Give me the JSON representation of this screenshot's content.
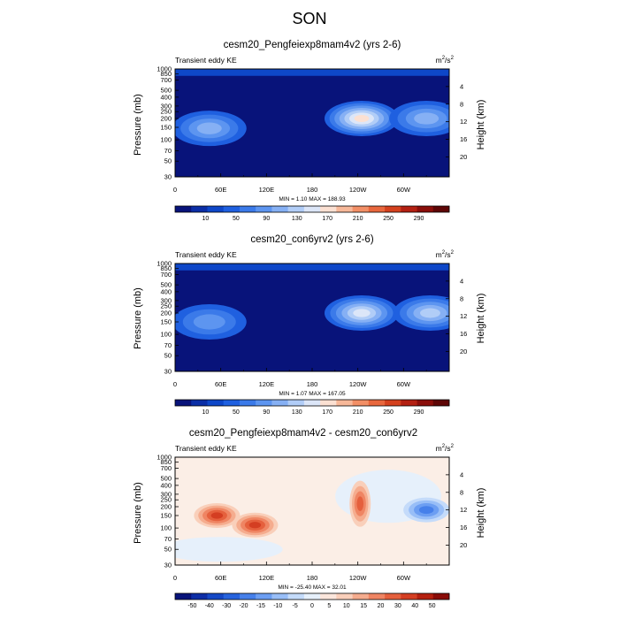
{
  "figure": {
    "title": "SON"
  },
  "colorbar_abs": {
    "ticks": [
      "10",
      "50",
      "90",
      "130",
      "170",
      "210",
      "250",
      "290"
    ],
    "colors": [
      "#08137a",
      "#0b2ea6",
      "#0e47c8",
      "#1f60e0",
      "#3b7ae9",
      "#5d95f0",
      "#86b0f4",
      "#b1cdf7",
      "#dce6f8",
      "#fbe0d2",
      "#f7b899",
      "#f28f66",
      "#e8673d",
      "#d4411e",
      "#b32012",
      "#8a0e0a",
      "#5e0606"
    ]
  },
  "colorbar_diff": {
    "ticks": [
      "-50",
      "-40",
      "-30",
      "-20",
      "-15",
      "-10",
      "-5",
      "0",
      "5",
      "10",
      "15",
      "20",
      "30",
      "40",
      "50"
    ],
    "colors": [
      "#08137a",
      "#0e2ea6",
      "#1548c6",
      "#2763dd",
      "#4680ea",
      "#6c9ef2",
      "#98bef7",
      "#c4dbfa",
      "#e6f0fb",
      "#fbe6dc",
      "#f9cfba",
      "#f5ac8e",
      "#ef8563",
      "#e5603d",
      "#d43e22",
      "#b5200f",
      "#8a0c08"
    ]
  },
  "chart_data": [
    {
      "type": "heatmap",
      "title": "cesm20_Pengfeiexp8mam4v2 (yrs 2-6)",
      "subtitle_left": "Transient eddy KE",
      "units": "m²/s²",
      "units_base": "m",
      "units_sup1": "2",
      "units_mid": "/s",
      "units_sup2": "2",
      "xlabel": "",
      "ylabel": "Pressure (mb)",
      "ylabel_right": "Height (km)",
      "x_ticks": [
        "0",
        "60E",
        "120E",
        "180",
        "120W",
        "60W"
      ],
      "x_tick_lon": [
        0,
        60,
        120,
        180,
        240,
        300
      ],
      "xlim": [
        0,
        360
      ],
      "y_ticks": [
        "30",
        "50",
        "70",
        "100",
        "150",
        "200",
        "250",
        "300",
        "400",
        "500",
        "700",
        "850",
        "1000"
      ],
      "y_tick_p": [
        30,
        50,
        70,
        100,
        150,
        200,
        250,
        300,
        400,
        500,
        700,
        850,
        1000
      ],
      "ylim": [
        1000,
        30
      ],
      "right_ticks": [
        "20",
        "16",
        "12",
        "8",
        "4"
      ],
      "right_tick_km": [
        20,
        16,
        12,
        8,
        4
      ],
      "stats_text": "MIN =   1.10  MAX = 188.93",
      "min": 1.1,
      "max": 188.93,
      "features": [
        {
          "lon": 45,
          "p": 145,
          "value": 115
        },
        {
          "lon": 245,
          "p": 200,
          "value": 188.93
        },
        {
          "lon": 330,
          "p": 200,
          "value": 125
        }
      ]
    },
    {
      "type": "heatmap",
      "title": "cesm20_con6yrv2 (yrs 2-6)",
      "subtitle_left": "Transient eddy KE",
      "units": "m²/s²",
      "units_base": "m",
      "units_sup1": "2",
      "units_mid": "/s",
      "units_sup2": "2",
      "xlabel": "",
      "ylabel": "Pressure (mb)",
      "ylabel_right": "Height (km)",
      "x_ticks": [
        "0",
        "60E",
        "120E",
        "180",
        "120W",
        "60W"
      ],
      "x_tick_lon": [
        0,
        60,
        120,
        180,
        240,
        300
      ],
      "xlim": [
        0,
        360
      ],
      "y_ticks": [
        "30",
        "50",
        "70",
        "100",
        "150",
        "200",
        "250",
        "300",
        "400",
        "500",
        "700",
        "850",
        "1000"
      ],
      "y_tick_p": [
        30,
        50,
        70,
        100,
        150,
        200,
        250,
        300,
        400,
        500,
        700,
        850,
        1000
      ],
      "ylim": [
        1000,
        30
      ],
      "right_ticks": [
        "20",
        "16",
        "12",
        "8",
        "4"
      ],
      "right_tick_km": [
        20,
        16,
        12,
        8,
        4
      ],
      "stats_text": "MIN =   1.07  MAX = 167.05",
      "min": 1.07,
      "max": 167.05,
      "features": [
        {
          "lon": 45,
          "p": 150,
          "value": 95
        },
        {
          "lon": 245,
          "p": 200,
          "value": 167.05
        },
        {
          "lon": 335,
          "p": 200,
          "value": 140
        }
      ]
    },
    {
      "type": "heatmap",
      "title": "cesm20_Pengfeiexp8mam4v2 - cesm20_con6yrv2",
      "subtitle_left": "Transient eddy KE",
      "units": "m²/s²",
      "units_base": "m",
      "units_sup1": "2",
      "units_mid": "/s",
      "units_sup2": "2",
      "xlabel": "",
      "ylabel": "Pressure (mb)",
      "ylabel_right": "Height (km)",
      "x_ticks": [
        "0",
        "60E",
        "120E",
        "180",
        "120W",
        "60W"
      ],
      "x_tick_lon": [
        0,
        60,
        120,
        180,
        240,
        300
      ],
      "xlim": [
        0,
        360
      ],
      "y_ticks": [
        "30",
        "50",
        "70",
        "100",
        "150",
        "200",
        "250",
        "300",
        "400",
        "500",
        "700",
        "850",
        "1000"
      ],
      "y_tick_p": [
        30,
        50,
        70,
        100,
        150,
        200,
        250,
        300,
        400,
        500,
        700,
        850,
        1000
      ],
      "ylim": [
        1000,
        30
      ],
      "right_ticks": [
        "20",
        "16",
        "12",
        "8",
        "4"
      ],
      "right_tick_km": [
        20,
        16,
        12,
        8,
        4
      ],
      "stats_text": "MIN = -25.40  MAX =  32.01",
      "min": -25.4,
      "max": 32.01,
      "features": [
        {
          "lon": 55,
          "p": 150,
          "value": 30
        },
        {
          "lon": 105,
          "p": 110,
          "value": 32.01
        },
        {
          "lon": 243,
          "p": 220,
          "value": 25
        },
        {
          "lon": 330,
          "p": 180,
          "value": -25.4
        }
      ]
    }
  ]
}
